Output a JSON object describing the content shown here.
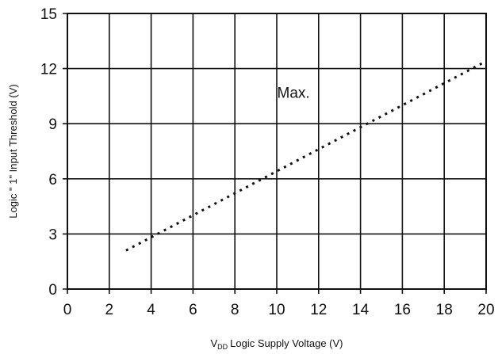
{
  "chart_data": {
    "type": "line",
    "title": "",
    "xlabel": "Logic Supply Voltage (V)",
    "xlabel_prefix": "V",
    "xlabel_subscript": "DD",
    "ylabel": "Logic \" 1\" Input Threshold (V)",
    "xlim": [
      0,
      20
    ],
    "ylim": [
      0,
      15
    ],
    "xticks": [
      0,
      2,
      4,
      6,
      8,
      10,
      12,
      14,
      16,
      18,
      20
    ],
    "yticks": [
      0,
      3,
      6,
      9,
      12,
      15
    ],
    "grid": true,
    "line_style": "dotted",
    "line_color": "#111111",
    "series": [
      {
        "x": [
          2.8,
          20
        ],
        "y": [
          2.1,
          12.4
        ]
      }
    ],
    "annotations": [
      {
        "text": "Max.",
        "x": 10.8,
        "y": 10.4
      }
    ]
  }
}
